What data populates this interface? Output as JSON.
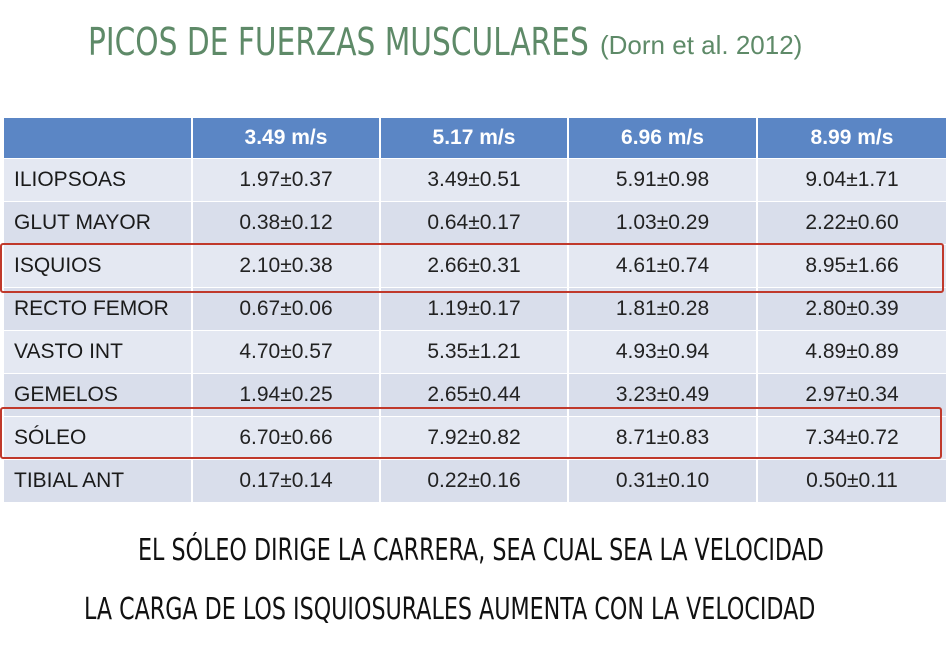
{
  "header": {
    "title": "PICOS DE FUERZAS MUSCULARES",
    "citation": "(Dorn et al. 2012)"
  },
  "table": {
    "columns": [
      "",
      "3.49 m/s",
      "5.17 m/s",
      "6.96 m/s",
      "8.99 m/s"
    ],
    "rows": [
      {
        "muscle": "ILIOPSOAS",
        "values": [
          "1.97±0.37",
          "3.49±0.51",
          "5.91±0.98",
          "9.04±1.71"
        ]
      },
      {
        "muscle": "GLUT MAYOR",
        "values": [
          "0.38±0.12",
          "0.64±0.17",
          "1.03±0.29",
          "2.22±0.60"
        ]
      },
      {
        "muscle": "ISQUIOS",
        "values": [
          "2.10±0.38",
          "2.66±0.31",
          "4.61±0.74",
          "8.95±1.66"
        ]
      },
      {
        "muscle": "RECTO FEMOR",
        "values": [
          "0.67±0.06",
          "1.19±0.17",
          "1.81±0.28",
          "2.80±0.39"
        ]
      },
      {
        "muscle": "VASTO INT",
        "values": [
          "4.70±0.57",
          "5.35±1.21",
          "4.93±0.94",
          "4.89±0.89"
        ]
      },
      {
        "muscle": "GEMELOS",
        "values": [
          "1.94±0.25",
          "2.65±0.44",
          "3.23±0.49",
          "2.97±0.34"
        ]
      },
      {
        "muscle": "SÓLEO",
        "values": [
          "6.70±0.66",
          "7.92±0.82",
          "8.71±0.83",
          "7.34±0.72"
        ]
      },
      {
        "muscle": "TIBIAL ANT",
        "values": [
          "0.17±0.14",
          "0.22±0.16",
          "0.31±0.10",
          "0.50±0.11"
        ]
      }
    ],
    "highlighted_rows": [
      "ISQUIOS",
      "SÓLEO"
    ]
  },
  "conclusions": [
    "EL SÓLEO DIRIGE LA CARRERA, SEA CUAL SEA LA VELOCIDAD",
    "LA CARGA DE LOS ISQUIOSURALES AUMENTA CON LA VELOCIDAD"
  ],
  "colors": {
    "title": "#5e8a68",
    "header_bg": "#5b86c5",
    "highlight_border": "#c0392b"
  }
}
